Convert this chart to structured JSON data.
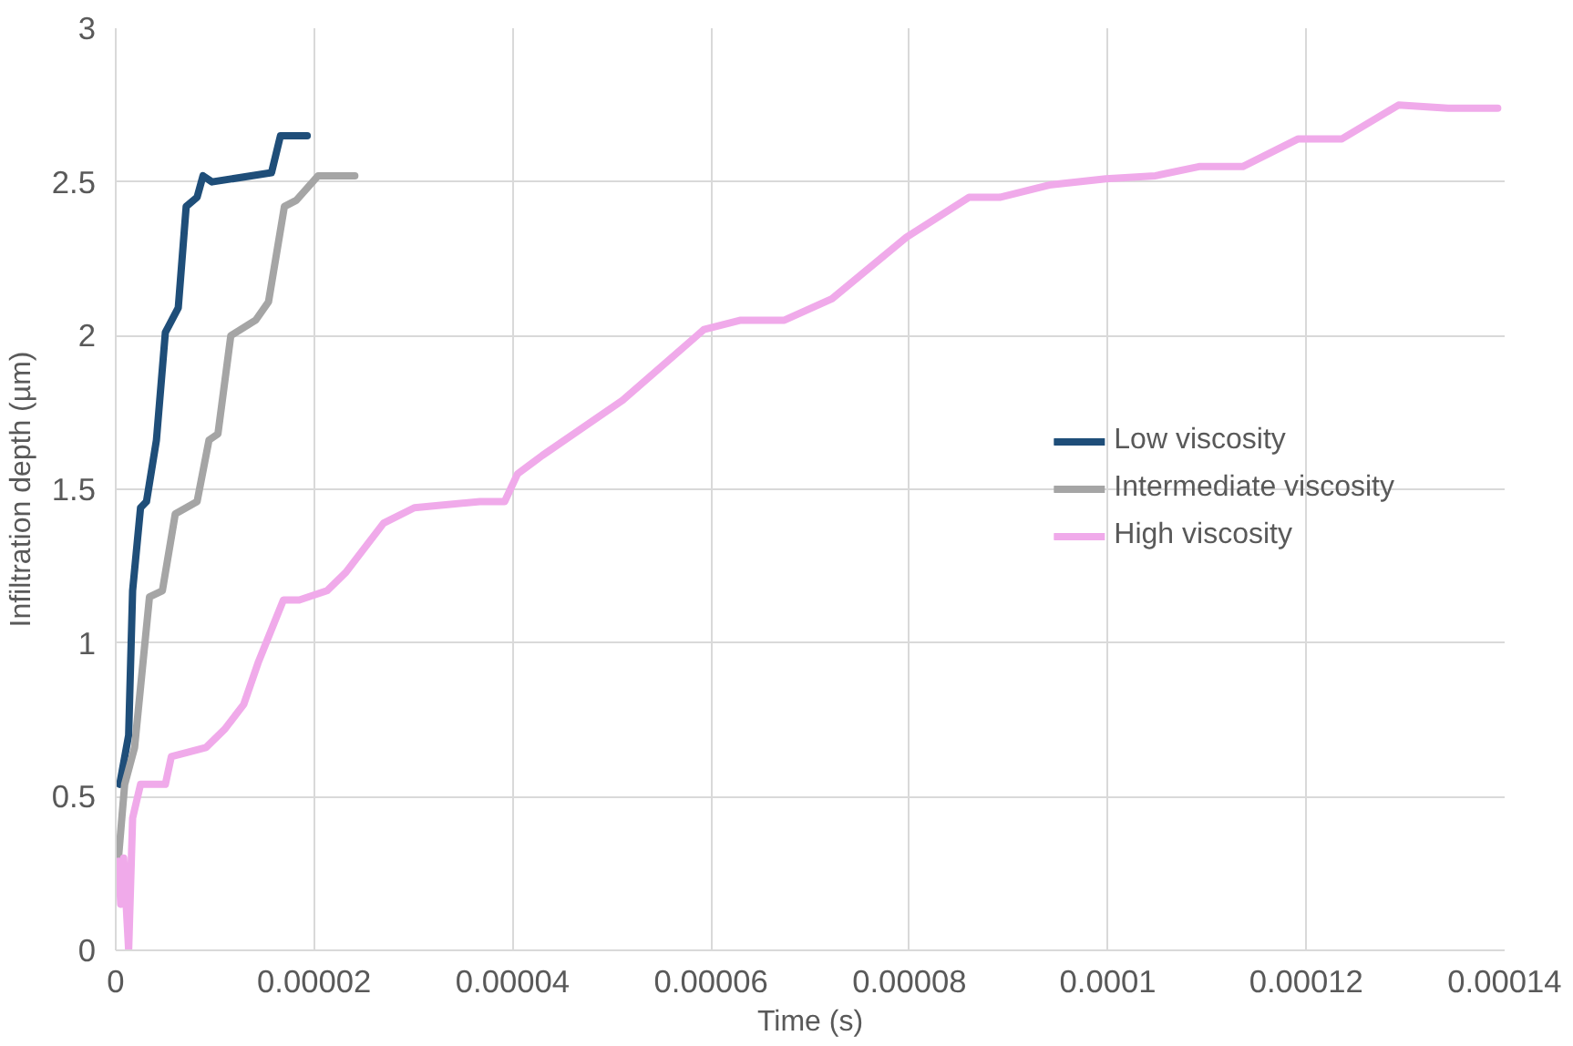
{
  "chart_data": {
    "type": "line",
    "xlabel": "Time (s)",
    "ylabel": "Infiltration depth (µm)",
    "xlim": [
      0,
      0.00014
    ],
    "ylim": [
      0,
      3
    ],
    "xticks": [
      0,
      {
        "value": 2e-05,
        "label": "0.00002"
      },
      {
        "value": 4e-05,
        "label": "0.00004"
      },
      {
        "value": 6e-05,
        "label": "0.00006"
      },
      {
        "value": 8e-05,
        "label": "0.00008"
      },
      {
        "value": 0.0001,
        "label": "0.0001"
      },
      {
        "value": 0.00012,
        "label": "0.00012"
      },
      {
        "value": 0.00014,
        "label": "0.00014"
      }
    ],
    "yticks": [
      0,
      0.5,
      1,
      1.5,
      2,
      2.5,
      3
    ],
    "grid": true,
    "legend": "right",
    "marker": "none",
    "line_style": "solid",
    "series": [
      {
        "name": "Low viscosity",
        "color": "#1f4e79",
        "x": [
          4e-07,
          1.3e-06,
          1.7e-06,
          2.5e-06,
          3.1e-06,
          4.1e-06,
          5e-06,
          6.3e-06,
          7.1e-06,
          8.2e-06,
          8.8e-06,
          9.7e-06,
          1.57e-05,
          1.66e-05,
          1.93e-05
        ],
        "values": [
          0.54,
          0.7,
          1.17,
          1.44,
          1.46,
          1.66,
          2.01,
          2.09,
          2.42,
          2.45,
          2.52,
          2.5,
          2.53,
          2.65,
          2.65
        ]
      },
      {
        "name": "Intermediate viscosity",
        "color": "#a5a5a5",
        "x": [
          3e-07,
          9e-07,
          1.9e-06,
          3.4e-06,
          4.7e-06,
          6e-06,
          8.2e-06,
          9.4e-06,
          1.03e-05,
          1.16e-05,
          1.41e-05,
          1.54e-05,
          1.7e-05,
          1.82e-05,
          2.04e-05,
          2.41e-05
        ],
        "values": [
          0.31,
          0.54,
          0.66,
          1.15,
          1.17,
          1.42,
          1.46,
          1.66,
          1.68,
          2.0,
          2.05,
          2.11,
          2.42,
          2.44,
          2.52,
          2.52
        ]
      },
      {
        "name": "High viscosity",
        "color": "#f0aaea",
        "x": [
          3e-07,
          5e-07,
          8e-07,
          1.3e-06,
          1.7e-06,
          2.5e-06,
          5e-06,
          5.6e-06,
          9.1e-06,
          1.1e-05,
          1.29e-05,
          1.44e-05,
          1.69e-05,
          1.85e-05,
          2.13e-05,
          2.32e-05,
          2.7e-05,
          3.01e-05,
          3.67e-05,
          3.92e-05,
          4.05e-05,
          4.3e-05,
          5.11e-05,
          5.93e-05,
          6.3e-05,
          6.74e-05,
          7.22e-05,
          7.97e-05,
          8.6e-05,
          8.91e-05,
          9.41e-05,
          9.98e-05,
          0.0001048,
          0.0001092,
          0.0001136,
          0.0001192,
          0.0001236,
          0.0001293,
          0.0001343,
          0.0001393
        ],
        "values": [
          0.29,
          0.15,
          0.3,
          0.0,
          0.43,
          0.54,
          0.54,
          0.63,
          0.66,
          0.72,
          0.8,
          0.94,
          1.14,
          1.14,
          1.17,
          1.23,
          1.39,
          1.44,
          1.46,
          1.46,
          1.55,
          1.61,
          1.79,
          2.02,
          2.05,
          2.05,
          2.12,
          2.32,
          2.45,
          2.45,
          2.49,
          2.51,
          2.52,
          2.55,
          2.55,
          2.64,
          2.64,
          2.75,
          2.74,
          2.74
        ]
      }
    ]
  }
}
